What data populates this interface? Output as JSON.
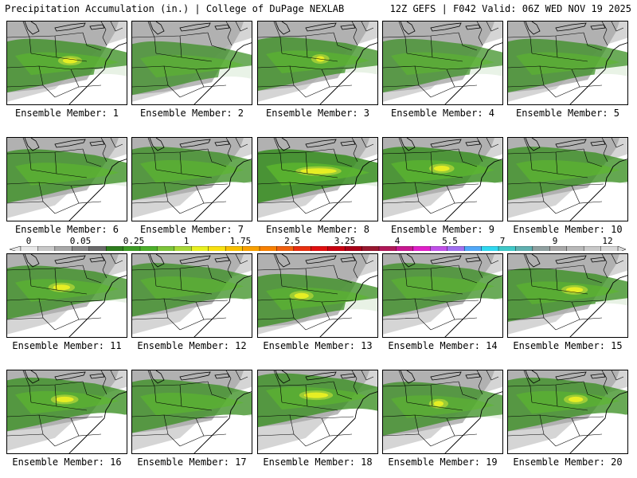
{
  "header": {
    "left": "Precipitation Accumulation (in.) | College of DuPage NEXLAB",
    "right": "12Z GEFS | F042 Valid: 06Z WED NOV 19 2025"
  },
  "panel_prefix": "Ensemble Member: ",
  "members": [
    {
      "id": 1,
      "label": "Ensemble Member: 1",
      "band_y": 0.52,
      "intensity": 0.55,
      "yellow": [
        0.46,
        0.58
      ]
    },
    {
      "id": 2,
      "label": "Ensemble Member: 2",
      "band_y": 0.55,
      "intensity": 0.45,
      "yellow": []
    },
    {
      "id": 3,
      "label": "Ensemble Member: 3",
      "band_y": 0.5,
      "intensity": 0.55,
      "yellow": [
        0.48,
        0.55
      ]
    },
    {
      "id": 4,
      "label": "Ensemble Member: 4",
      "band_y": 0.52,
      "intensity": 0.45,
      "yellow": []
    },
    {
      "id": 5,
      "label": "Ensemble Member: 5",
      "band_y": 0.52,
      "intensity": 0.5,
      "yellow": []
    },
    {
      "id": 6,
      "label": "Ensemble Member: 6",
      "band_y": 0.45,
      "intensity": 0.6,
      "yellow": []
    },
    {
      "id": 7,
      "label": "Ensemble Member: 7",
      "band_y": 0.42,
      "intensity": 0.55,
      "yellow": []
    },
    {
      "id": 8,
      "label": "Ensemble Member: 8",
      "band_y": 0.45,
      "intensity": 0.8,
      "yellow": [
        0.35,
        0.65
      ]
    },
    {
      "id": 9,
      "label": "Ensemble Member: 9",
      "band_y": 0.42,
      "intensity": 0.7,
      "yellow": [
        0.42,
        0.55
      ]
    },
    {
      "id": 10,
      "label": "Ensemble Member: 10",
      "band_y": 0.42,
      "intensity": 0.6,
      "yellow": []
    },
    {
      "id": 11,
      "label": "Ensemble Member: 11",
      "band_y": 0.45,
      "intensity": 0.55,
      "yellow": [
        0.38,
        0.52
      ]
    },
    {
      "id": 12,
      "label": "Ensemble Member: 12",
      "band_y": 0.42,
      "intensity": 0.5,
      "yellow": []
    },
    {
      "id": 13,
      "label": "Ensemble Member: 13",
      "band_y": 0.55,
      "intensity": 0.55,
      "yellow": [
        0.3,
        0.42
      ]
    },
    {
      "id": 14,
      "label": "Ensemble Member: 14",
      "band_y": 0.42,
      "intensity": 0.5,
      "yellow": []
    },
    {
      "id": 15,
      "label": "Ensemble Member: 15",
      "band_y": 0.48,
      "intensity": 0.6,
      "yellow": [
        0.48,
        0.62
      ]
    },
    {
      "id": 16,
      "label": "Ensemble Member: 16",
      "band_y": 0.4,
      "intensity": 0.6,
      "yellow": [
        0.4,
        0.55
      ]
    },
    {
      "id": 17,
      "label": "Ensemble Member: 17",
      "band_y": 0.42,
      "intensity": 0.55,
      "yellow": []
    },
    {
      "id": 18,
      "label": "Ensemble Member: 18",
      "band_y": 0.35,
      "intensity": 0.6,
      "yellow": [
        0.38,
        0.58
      ]
    },
    {
      "id": 19,
      "label": "Ensemble Member: 19",
      "band_y": 0.45,
      "intensity": 0.5,
      "yellow": [
        0.42,
        0.5
      ]
    },
    {
      "id": 20,
      "label": "Ensemble Member: 20",
      "band_y": 0.4,
      "intensity": 0.55,
      "yellow": [
        0.5,
        0.62
      ]
    }
  ],
  "colorbar": {
    "labels": [
      "0",
      "0.05",
      "0.25",
      "1",
      "1.75",
      "2.5",
      "3.25",
      "4",
      "5.5",
      "7",
      "9",
      "12"
    ],
    "colors": [
      "#e8e8e8",
      "#c8c8c8",
      "#a8a8a8",
      "#888888",
      "#6a6a6a",
      "#2e7d1e",
      "#3d9a26",
      "#4caf2a",
      "#7cc43a",
      "#a8d838",
      "#e8f020",
      "#f8e010",
      "#f8c000",
      "#f8a000",
      "#f88000",
      "#f06010",
      "#e83010",
      "#e01010",
      "#c80010",
      "#a80018",
      "#981830",
      "#b01858",
      "#c81890",
      "#e020c8",
      "#c050e8",
      "#a070f0",
      "#50a8f8",
      "#30d8f0",
      "#40c8c8",
      "#60b0b0",
      "#90a0a0",
      "#a8a8a8",
      "#b8b8b8",
      "#c8c8c8",
      "#d8d8d8"
    ]
  }
}
